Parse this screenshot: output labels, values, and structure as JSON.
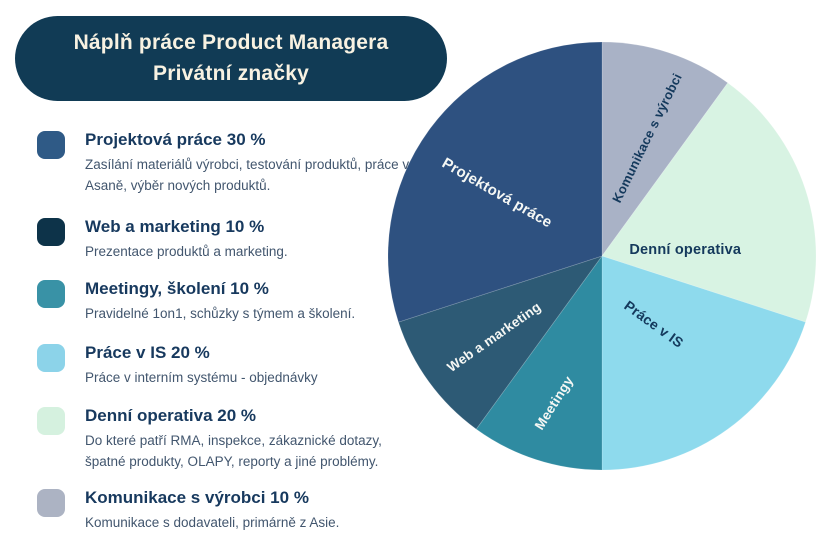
{
  "header": {
    "title_line1": "Náplň práce Product Managera",
    "title_line2": "Privátní značky",
    "bg_color": "#113b55",
    "text_color": "#f8f2e2"
  },
  "legend": {
    "items": [
      {
        "heading": "Projektová práce 30 %",
        "description": "Zasílání materiálů výrobci, testování produktů, práce v Asaně, výběr nových produktů.",
        "swatch_color": "#2f5a86"
      },
      {
        "heading": "Web a marketing 10 %",
        "description": "Prezentace produktů a marketing.",
        "swatch_color": "#0d3349"
      },
      {
        "heading": "Meetingy, školení 10 %",
        "description": "Pravidelné 1on1, schůzky s týmem a školení.",
        "swatch_color": "#3992a6"
      },
      {
        "heading": "Práce v IS 20 %",
        "description": "Práce v interním systému - objednávky",
        "swatch_color": "#8cd3e9"
      },
      {
        "heading": "Denní operativa 20 %",
        "description": "Do které patří RMA, inspekce, zákaznické dotazy, špatné produkty, OLAPY, reporty a jiné problémy.",
        "swatch_color": "#d5f1df"
      },
      {
        "heading": "Komunikace s výrobci 10 %",
        "description": "Komunikace s dodavateli, primárně z Asie.",
        "swatch_color": "#acb3c3"
      }
    ]
  },
  "chart_data": {
    "type": "pie",
    "title": "Náplň práce Product Managera Privátní značky",
    "start_angle_deg": 0,
    "direction": "clockwise",
    "legend_position": "left",
    "slices": [
      {
        "label": "Komunikace s výrobci",
        "value_pct": 10,
        "color": "#a9b2c6",
        "label_color": "#14395c",
        "label_angle_deg": 21,
        "label_radius_frac": 0.59,
        "label_rotation_deg": -64,
        "label_size_px": 13
      },
      {
        "label": "Denní operativa",
        "value_pct": 20,
        "color": "#d8f3e3",
        "label_color": "#14395c",
        "label_angle_deg": 86,
        "label_radius_frac": 0.39,
        "label_rotation_deg": 0,
        "label_size_px": 14.5
      },
      {
        "label": "Práce v IS",
        "value_pct": 20,
        "color": "#8edaed",
        "label_color": "#14395c",
        "label_angle_deg": 143,
        "label_radius_frac": 0.4,
        "label_rotation_deg": 36,
        "label_size_px": 14
      },
      {
        "label": "Meetingy",
        "value_pct": 10,
        "color": "#2f8ba1",
        "label_color": "#f5f7f4",
        "label_angle_deg": 198,
        "label_radius_frac": 0.72,
        "label_rotation_deg": -58,
        "label_size_px": 13.5
      },
      {
        "label": "Web a marketing",
        "value_pct": 10,
        "color": "#2d5a75",
        "label_color": "#f5f7f4",
        "label_angle_deg": 233,
        "label_radius_frac": 0.63,
        "label_rotation_deg": -35,
        "label_size_px": 13.5
      },
      {
        "label": "Projektová práce",
        "value_pct": 30,
        "color": "#2e5180",
        "label_color": "#f5f7f4",
        "label_angle_deg": 301,
        "label_radius_frac": 0.57,
        "label_rotation_deg": 30,
        "label_size_px": 15
      }
    ]
  }
}
